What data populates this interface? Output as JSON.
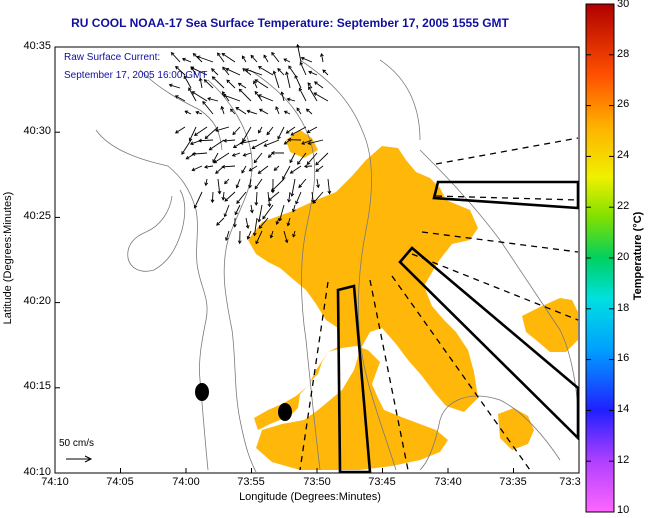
{
  "header": {
    "title": "RU COOL  NOAA-17  Sea Surface Temperature:  September 17, 2005 1555 GMT"
  },
  "overlay_legend": {
    "line1": "Raw Surface Current:",
    "line2": "September 17, 2005 16:00 GMT"
  },
  "axes": {
    "xlabel": "Longitude (Degrees:Minutes)",
    "ylabel": "Latitude (Degrees:Minutes)",
    "x_ticks": [
      "74:10",
      "74:05",
      "74:00",
      "73:55",
      "73:50",
      "73:45",
      "73:40",
      "73:35",
      "73:3"
    ],
    "y_ticks": [
      "40:35",
      "40:30",
      "40:25",
      "40:20",
      "40:15",
      "40:10"
    ]
  },
  "colorbar": {
    "label": "Temperature (°C)",
    "ticks": [
      "30",
      "28",
      "26",
      "24",
      "22",
      "20",
      "18",
      "16",
      "14",
      "12",
      "10"
    ],
    "range": [
      10,
      30
    ]
  },
  "scale_vector": {
    "label": "50 cm/s"
  },
  "colors": {
    "title": "#1010a0",
    "sst_patch": "#ffb70a",
    "sst_patch_warm": "#ffa800"
  }
}
